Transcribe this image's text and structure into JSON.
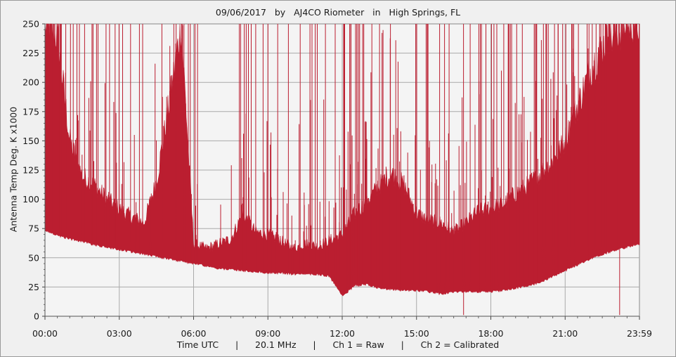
{
  "title": "09/06/2017   by   AJ4CO Riometer   in   High Springs, FL",
  "footer": "Time UTC      |      20.1 MHz      |      Ch 1 = Raw      |      Ch 2 = Calibrated",
  "chart_data": {
    "type": "area",
    "title": "09/06/2017   by   AJ4CO Riometer   in   High Springs, FL",
    "xlabel": "Time UTC",
    "ylabel": "Antenna Temp Deg. K x1000",
    "ylim": [
      0,
      250
    ],
    "y_ticks": [
      "0",
      "25",
      "50",
      "75",
      "100",
      "125",
      "150",
      "175",
      "200",
      "225",
      "250"
    ],
    "x_ticks": [
      "00:00",
      "03:00",
      "06:00",
      "09:00",
      "12:00",
      "15:00",
      "18:00",
      "21:00",
      "23:59"
    ],
    "x_range_hours": [
      0,
      24
    ],
    "grid": true,
    "series": [
      {
        "name": "Ch 1 = Raw",
        "color": "#bb1e30",
        "x_hours": [
          0,
          0.5,
          1,
          1.5,
          2,
          2.5,
          3,
          3.5,
          4,
          4.5,
          5,
          5.5,
          6,
          6.5,
          7,
          7.5,
          8,
          8.5,
          9,
          9.5,
          10,
          10.5,
          11,
          11.5,
          12,
          12.5,
          13,
          13.5,
          14,
          14.5,
          15,
          15.5,
          16,
          16.5,
          17,
          17.5,
          18,
          18.5,
          19,
          19.5,
          20,
          20.5,
          21,
          21.5,
          22,
          22.5,
          23,
          23.5,
          24
        ],
        "lower": [
          75,
          70,
          67,
          65,
          62,
          60,
          58,
          56,
          54,
          52,
          50,
          48,
          46,
          44,
          42,
          41,
          40,
          39,
          38,
          38,
          37,
          37,
          37,
          35,
          18,
          27,
          28,
          25,
          24,
          23,
          23,
          22,
          20,
          22,
          22,
          22,
          22,
          23,
          25,
          27,
          30,
          35,
          40,
          45,
          50,
          54,
          57,
          60,
          63
        ],
        "upper": [
          250,
          240,
          150,
          120,
          112,
          100,
          92,
          85,
          80,
          115,
          180,
          250,
          62,
          58,
          62,
          66,
          88,
          72,
          70,
          65,
          58,
          62,
          60,
          65,
          70,
          88,
          98,
          112,
          122,
          112,
          88,
          82,
          80,
          72,
          80,
          90,
          92,
          96,
          105,
          112,
          122,
          132,
          150,
          180,
          210,
          230,
          240,
          250,
          250
        ]
      }
    ]
  }
}
